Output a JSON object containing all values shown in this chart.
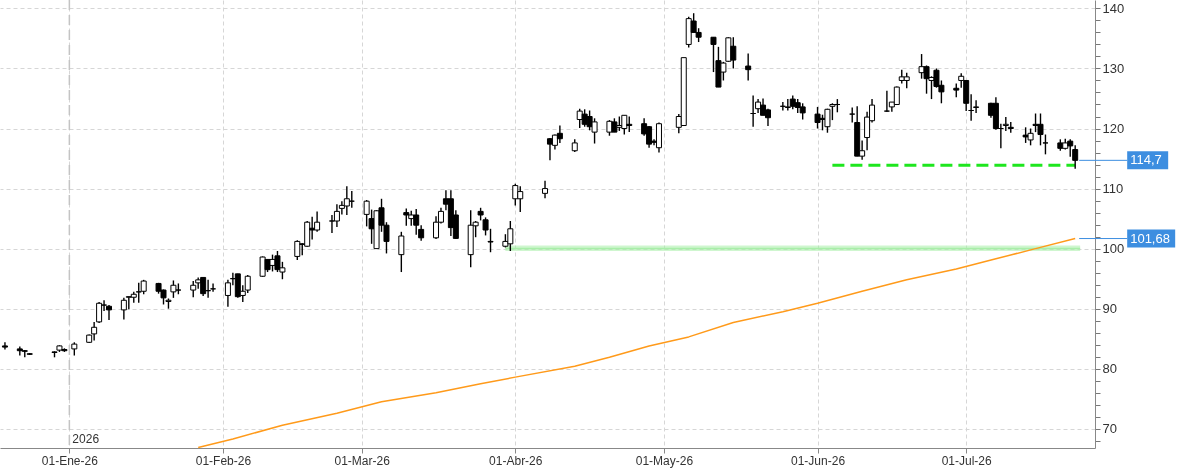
{
  "chart_data": {
    "type": "candlestick",
    "color": "#000000",
    "grid": true,
    "xlim": [
      "2025-12-18",
      "2026-07-27"
    ],
    "xticks": [
      {
        "value": "2026-01-01",
        "label": "01-Ene-26"
      },
      {
        "value": "2026-02-01",
        "label": "01-Feb-26"
      },
      {
        "value": "2026-03-01",
        "label": "01-Mar-26"
      },
      {
        "value": "2026-04-01",
        "label": "01-Abr-26"
      },
      {
        "value": "2026-05-01",
        "label": "01-May-26"
      },
      {
        "value": "2026-06-01",
        "label": "01-Jun-26"
      },
      {
        "value": "2026-07-01",
        "label": "01-Jul-26"
      }
    ],
    "ylim": [
      66.8,
      141.4
    ],
    "yticks": [
      {
        "value": 68,
        "label": null
      },
      70,
      {
        "value": 72,
        "label": null
      },
      {
        "value": 74,
        "label": null
      },
      {
        "value": 76,
        "label": null
      },
      {
        "value": 78,
        "label": null
      },
      80,
      {
        "value": 82,
        "label": null
      },
      {
        "value": 84,
        "label": null
      },
      {
        "value": 86,
        "label": null
      },
      {
        "value": 88,
        "label": null
      },
      90,
      {
        "value": 92,
        "label": null
      },
      {
        "value": 94,
        "label": null
      },
      {
        "value": 96,
        "label": null
      },
      {
        "value": 98,
        "label": null
      },
      100,
      {
        "value": 102,
        "label": null
      },
      {
        "value": 104,
        "label": null
      },
      {
        "value": 106,
        "label": null
      },
      {
        "value": 108,
        "label": null
      },
      110,
      {
        "value": 112,
        "label": null
      },
      {
        "value": 114,
        "label": null
      },
      {
        "value": 116,
        "label": null
      },
      {
        "value": 118,
        "label": null
      },
      120,
      {
        "value": 122,
        "label": null
      },
      {
        "value": 124,
        "label": null
      },
      {
        "value": 126,
        "label": null
      },
      {
        "value": 128,
        "label": null
      },
      130,
      {
        "value": 132,
        "label": null
      },
      {
        "value": 134,
        "label": null
      },
      {
        "value": 136,
        "label": null
      },
      {
        "value": 138,
        "label": null
      },
      140
    ],
    "x": [
      "2025-12-19",
      "2025-12-22",
      "2025-12-23",
      "2025-12-24",
      "2025-12-29",
      "2025-12-30",
      "2025-12-31",
      "2026-01-02",
      "2026-01-05",
      "2026-01-06",
      "2026-01-07",
      "2026-01-08",
      "2026-01-09",
      "2026-01-12",
      "2026-01-13",
      "2026-01-14",
      "2026-01-15",
      "2026-01-16",
      "2026-01-19",
      "2026-01-20",
      "2026-01-21",
      "2026-01-22",
      "2026-01-23",
      "2026-01-26",
      "2026-01-27",
      "2026-01-28",
      "2026-01-29",
      "2026-01-30",
      "2026-02-02",
      "2026-02-03",
      "2026-02-04",
      "2026-02-05",
      "2026-02-06",
      "2026-02-09",
      "2026-02-10",
      "2026-02-11",
      "2026-02-12",
      "2026-02-13",
      "2026-02-16",
      "2026-02-17",
      "2026-02-18",
      "2026-02-19",
      "2026-02-20",
      "2026-02-23",
      "2026-02-24",
      "2026-02-25",
      "2026-02-26",
      "2026-02-27",
      "2026-03-02",
      "2026-03-03",
      "2026-03-04",
      "2026-03-05",
      "2026-03-06",
      "2026-03-09",
      "2026-03-10",
      "2026-03-11",
      "2026-03-12",
      "2026-03-13",
      "2026-03-16",
      "2026-03-17",
      "2026-03-18",
      "2026-03-19",
      "2026-03-20",
      "2026-03-23",
      "2026-03-24",
      "2026-03-25",
      "2026-03-26",
      "2026-03-27",
      "2026-03-30",
      "2026-03-31",
      "2026-04-01",
      "2026-04-02",
      "2026-04-07",
      "2026-04-08",
      "2026-04-09",
      "2026-04-10",
      "2026-04-13",
      "2026-04-14",
      "2026-04-15",
      "2026-04-16",
      "2026-04-17",
      "2026-04-20",
      "2026-04-21",
      "2026-04-22",
      "2026-04-23",
      "2026-04-24",
      "2026-04-27",
      "2026-04-28",
      "2026-04-29",
      "2026-04-30",
      "2026-05-04",
      "2026-05-05",
      "2026-05-06",
      "2026-05-07",
      "2026-05-08",
      "2026-05-11",
      "2026-05-12",
      "2026-05-13",
      "2026-05-14",
      "2026-05-15",
      "2026-05-18",
      "2026-05-19",
      "2026-05-20",
      "2026-05-21",
      "2026-05-22",
      "2026-05-25",
      "2026-05-26",
      "2026-05-27",
      "2026-05-28",
      "2026-05-29",
      "2026-06-01",
      "2026-06-02",
      "2026-06-03",
      "2026-06-04",
      "2026-06-05",
      "2026-06-08",
      "2026-06-09",
      "2026-06-10",
      "2026-06-11",
      "2026-06-12",
      "2026-06-15",
      "2026-06-16",
      "2026-06-17",
      "2026-06-18",
      "2026-06-19",
      "2026-06-22",
      "2026-06-23",
      "2026-06-24",
      "2026-06-25",
      "2026-06-26",
      "2026-06-29",
      "2026-06-30",
      "2026-07-01",
      "2026-07-02",
      "2026-07-03",
      "2026-07-06",
      "2026-07-07",
      "2026-07-08",
      "2026-07-09",
      "2026-07-10",
      "2026-07-13",
      "2026-07-14",
      "2026-07-15",
      "2026-07-16",
      "2026-07-17",
      "2026-07-20",
      "2026-07-21",
      "2026-07-22",
      "2026-07-23"
    ],
    "ohlc": [
      [
        83.8,
        84.4,
        83.2,
        83.6
      ],
      [
        83.3,
        83.7,
        82.2,
        83.0
      ],
      [
        83.0,
        83.1,
        81.9,
        82.9
      ],
      [
        82.5,
        82.6,
        82.3,
        82.4
      ],
      [
        82.8,
        82.9,
        81.9,
        82.7
      ],
      [
        83.1,
        83.9,
        82.8,
        83.8
      ],
      [
        83.2,
        83.4,
        82.8,
        83.0
      ],
      [
        83.3,
        84.4,
        82.2,
        84.1
      ],
      [
        84.4,
        85.7,
        84.3,
        85.6
      ],
      [
        85.8,
        87.8,
        84.7,
        86.9
      ],
      [
        87.8,
        91.1,
        87.6,
        90.9
      ],
      [
        90.6,
        91.4,
        89.6,
        90.6
      ],
      [
        90.4,
        90.6,
        88.1,
        89.8
      ],
      [
        89.8,
        91.8,
        88.2,
        91.4
      ],
      [
        91.9,
        92.0,
        89.9,
        92.0
      ],
      [
        91.9,
        92.8,
        91.0,
        92.4
      ],
      [
        92.8,
        94.3,
        91.0,
        92.8
      ],
      [
        92.9,
        94.8,
        92.4,
        94.6
      ],
      [
        94.2,
        94.3,
        92.5,
        92.9
      ],
      [
        93.1,
        93.2,
        90.7,
        91.8
      ],
      [
        91.2,
        91.7,
        90.0,
        91.4
      ],
      [
        92.8,
        94.7,
        91.8,
        93.9
      ],
      [
        93.1,
        94.2,
        92.4,
        93.1
      ],
      [
        93.1,
        94.6,
        91.9,
        93.9
      ],
      [
        94.3,
        95.2,
        93.3,
        94.8
      ],
      [
        95.2,
        95.2,
        92.1,
        92.5
      ],
      [
        93.0,
        94.8,
        91.8,
        93.0
      ],
      [
        93.3,
        94.2,
        92.8,
        93.3
      ],
      [
        92.2,
        94.8,
        90.3,
        94.3
      ],
      [
        95.0,
        96.0,
        93.9,
        95.0
      ],
      [
        95.8,
        95.8,
        91.8,
        92.0
      ],
      [
        92.2,
        93.9,
        91.1,
        92.9
      ],
      [
        93.1,
        95.6,
        92.6,
        95.4
      ],
      [
        95.4,
        98.7,
        95.3,
        98.6
      ],
      [
        98.2,
        98.2,
        96.1,
        96.5
      ],
      [
        97.2,
        99.0,
        96.2,
        98.2
      ],
      [
        98.8,
        99.6,
        96.1,
        96.5
      ],
      [
        96.1,
        97.8,
        94.9,
        96.8
      ],
      [
        98.7,
        101.4,
        98.1,
        101.2
      ],
      [
        100.8,
        100.9,
        98.9,
        100.7
      ],
      [
        100.4,
        104.6,
        100.3,
        104.4
      ],
      [
        103.4,
        105.3,
        101.5,
        103.1
      ],
      [
        103.1,
        106.2,
        102.8,
        104.4
      ],
      [
        104.6,
        105.6,
        102.6,
        104.6
      ],
      [
        104.6,
        107.4,
        103.6,
        106.2
      ],
      [
        106.7,
        107.9,
        105.7,
        107.2
      ],
      [
        107.1,
        110.4,
        105.6,
        108.3
      ],
      [
        107.9,
        109.6,
        106.8,
        107.9
      ],
      [
        105.7,
        108.1,
        103.7,
        107.9
      ],
      [
        105.0,
        106.5,
        100.8,
        103.3
      ],
      [
        100.0,
        106.4,
        100.0,
        106.3
      ],
      [
        106.8,
        108.3,
        102.8,
        103.9
      ],
      [
        103.9,
        104.4,
        99.2,
        101.2
      ],
      [
        99.0,
        102.8,
        96.1,
        102.1
      ],
      [
        106.0,
        106.7,
        103.8,
        105.6
      ],
      [
        105.0,
        106.3,
        103.8,
        105.6
      ],
      [
        105.6,
        106.6,
        102.3,
        103.9
      ],
      [
        103.2,
        103.9,
        101.3,
        101.8
      ],
      [
        101.8,
        105.4,
        101.6,
        104.4
      ],
      [
        104.4,
        106.8,
        104.2,
        106.2
      ],
      [
        108.3,
        109.7,
        106.4,
        107.4
      ],
      [
        108.3,
        109.7,
        102.1,
        103.5
      ],
      [
        105.6,
        106.4,
        101.6,
        101.7
      ],
      [
        99.0,
        106.4,
        96.9,
        103.9
      ],
      [
        103.8,
        104.6,
        101.9,
        104.4
      ],
      [
        106.2,
        106.8,
        104.7,
        105.6
      ],
      [
        104.8,
        105.2,
        102.2,
        103.1
      ],
      [
        101.2,
        103.3,
        99.4,
        101.1
      ],
      [
        100.4,
        102.4,
        100.2,
        101.2
      ],
      [
        100.8,
        104.6,
        99.6,
        103.3
      ],
      [
        108.3,
        110.8,
        107.2,
        110.5
      ],
      [
        108.3,
        110.4,
        106.1,
        109.5
      ],
      [
        109.2,
        111.3,
        108.4,
        110.0
      ],
      [
        118.3,
        118.4,
        114.7,
        117.4
      ],
      [
        117.2,
        119.0,
        116.5,
        118.9
      ],
      [
        119.2,
        120.5,
        117.6,
        118.3
      ],
      [
        116.3,
        118.2,
        116.1,
        117.6
      ],
      [
        121.5,
        123.3,
        120.1,
        122.9
      ],
      [
        122.4,
        123.2,
        120.3,
        120.7
      ],
      [
        122.0,
        123.0,
        119.7,
        120.3
      ],
      [
        119.4,
        121.7,
        117.5,
        121.1
      ],
      [
        119.4,
        121.4,
        118.8,
        121.2
      ],
      [
        121.1,
        121.7,
        119.4,
        119.4
      ],
      [
        120.2,
        122.0,
        119.6,
        120.5
      ],
      [
        120.0,
        122.2,
        119.0,
        122.2
      ],
      [
        120.7,
        122.0,
        119.4,
        120.5
      ],
      [
        120.8,
        121.7,
        118.8,
        119.1
      ],
      [
        120.3,
        120.4,
        116.8,
        117.4
      ],
      [
        117.9,
        118.2,
        117.2,
        117.7
      ],
      [
        116.8,
        121.0,
        116.0,
        120.8
      ],
      [
        120.2,
        122.4,
        119.2,
        122.0
      ],
      [
        120.5,
        131.8,
        120.5,
        131.8
      ],
      [
        134.0,
        138.6,
        133.5,
        138.3
      ],
      [
        137.9,
        139.2,
        136.0,
        136.0
      ],
      [
        136.0,
        136.7,
        134.4,
        135.2
      ],
      [
        135.2,
        135.2,
        129.4,
        134.0
      ],
      [
        131.3,
        133.6,
        126.9,
        126.9
      ],
      [
        129.4,
        131.1,
        128.0,
        130.9
      ],
      [
        131.2,
        135.2,
        131.1,
        135.1
      ],
      [
        133.7,
        135.2,
        130.0,
        131.4
      ],
      [
        130.4,
        132.5,
        128.0,
        129.8
      ],
      [
        122.5,
        125.5,
        120.3,
        122.5
      ],
      [
        123.3,
        124.9,
        122.6,
        124.4
      ],
      [
        123.9,
        125.0,
        122.2,
        122.2
      ],
      [
        123.1,
        123.3,
        120.4,
        121.8
      ],
      [
        123.7,
        124.4,
        123.0,
        123.7
      ],
      [
        123.5,
        124.9,
        123.0,
        123.6
      ],
      [
        124.9,
        125.5,
        123.2,
        123.7
      ],
      [
        124.3,
        124.9,
        122.6,
        123.5
      ],
      [
        123.6,
        124.2,
        121.5,
        122.6
      ],
      [
        122.4,
        123.6,
        120.0,
        121.0
      ],
      [
        121.7,
        122.3,
        119.7,
        121.5
      ],
      [
        120.3,
        123.3,
        119.3,
        123.2
      ],
      [
        123.7,
        124.2,
        121.4,
        124.0
      ],
      [
        124.0,
        124.9,
        122.7,
        124.0
      ],
      [
        122.4,
        123.5,
        121.0,
        122.4
      ],
      [
        121.0,
        123.7,
        115.4,
        115.4
      ],
      [
        115.4,
        118.0,
        114.8,
        116.3
      ],
      [
        118.5,
        122.8,
        116.4,
        121.9
      ],
      [
        121.3,
        124.9,
        121.0,
        123.9
      ],
      [
        122.9,
        126.3,
        122.8,
        122.9
      ],
      [
        123.6,
        124.4,
        122.8,
        124.4
      ],
      [
        124.0,
        127.0,
        123.9,
        126.9
      ],
      [
        128.0,
        129.8,
        127.5,
        128.6
      ],
      [
        128.0,
        129.3,
        126.7,
        128.6
      ],
      [
        129.3,
        132.4,
        128.3,
        130.3
      ],
      [
        130.3,
        130.5,
        125.8,
        128.3
      ],
      [
        128.0,
        128.7,
        124.9,
        128.5
      ],
      [
        129.7,
        130.0,
        126.8,
        127.0
      ],
      [
        127.2,
        128.0,
        124.2,
        126.1
      ],
      [
        126.7,
        127.5,
        125.2,
        126.4
      ],
      [
        128.0,
        129.2,
        126.8,
        128.7
      ],
      [
        128.0,
        128.0,
        122.9,
        124.2
      ],
      [
        123.0,
        125.7,
        121.3,
        123.0
      ],
      [
        123.5,
        124.7,
        122.6,
        123.6
      ],
      [
        124.2,
        124.3,
        121.8,
        122.2
      ],
      [
        124.2,
        125.2,
        119.8,
        120.0
      ],
      [
        120.0,
        120.8,
        116.7,
        120.0
      ],
      [
        120.5,
        121.9,
        119.6,
        120.7
      ],
      [
        120.2,
        121.1,
        119.3,
        120.0
      ],
      [
        118.9,
        120.2,
        117.6,
        118.6
      ],
      [
        118.1,
        120.0,
        117.2,
        119.2
      ],
      [
        120.7,
        122.5,
        119.4,
        120.5
      ],
      [
        120.7,
        122.5,
        117.2,
        119.0
      ],
      [
        117.6,
        119.0,
        115.7,
        117.6
      ],
      [
        117.6,
        118.2,
        116.3,
        116.7
      ],
      [
        116.7,
        118.3,
        116.5,
        117.6
      ],
      [
        117.9,
        118.2,
        115.3,
        117.1
      ],
      [
        116.5,
        117.2,
        113.3,
        114.7
      ]
    ],
    "series": [
      {
        "type": "line",
        "color": "#a8eea8",
        "x": [
          "2026-03-30",
          "2026-07-24"
        ],
        "values": [
          100.0,
          100.0
        ],
        "lower": [
          99.6,
          99.6
        ],
        "upper": [
          100.5,
          100.5
        ]
      },
      {
        "type": "line",
        "color": "#ff9a1a",
        "x": [
          "2026-01-27",
          "2026-02-03",
          "2026-02-13",
          "2026-02-24",
          "2026-03-05",
          "2026-03-16",
          "2026-03-25",
          "2026-04-01",
          "2026-04-13",
          "2026-04-20",
          "2026-04-28",
          "2026-05-06",
          "2026-05-15",
          "2026-05-25",
          "2026-06-01",
          "2026-06-10",
          "2026-06-19",
          "2026-06-29",
          "2026-07-07",
          "2026-07-15",
          "2026-07-23"
        ],
        "values": [
          66.9,
          68.3,
          70.6,
          72.6,
          74.5,
          76.0,
          77.5,
          78.6,
          80.4,
          81.9,
          83.8,
          85.3,
          87.7,
          89.5,
          90.9,
          92.9,
          94.8,
          96.6,
          98.3,
          100.0,
          101.68
        ]
      },
      {
        "type": "line",
        "color": "#1ee61e",
        "line_style": "dashed",
        "x": [
          "2026-06-04",
          "2026-07-23"
        ],
        "values": [
          113.9,
          113.9
        ]
      }
    ],
    "ref_lines": [
      {
        "axis": "x",
        "value": "2026-01-01",
        "label": "2026",
        "color": "#c4c4c4",
        "line_style": "dashed"
      }
    ],
    "annotations": [
      {
        "text": "114,7",
        "x": "2026-07-23",
        "y": 114.7
      },
      {
        "text": "101,68",
        "x": "2026-07-23",
        "y": 101.68
      }
    ]
  }
}
